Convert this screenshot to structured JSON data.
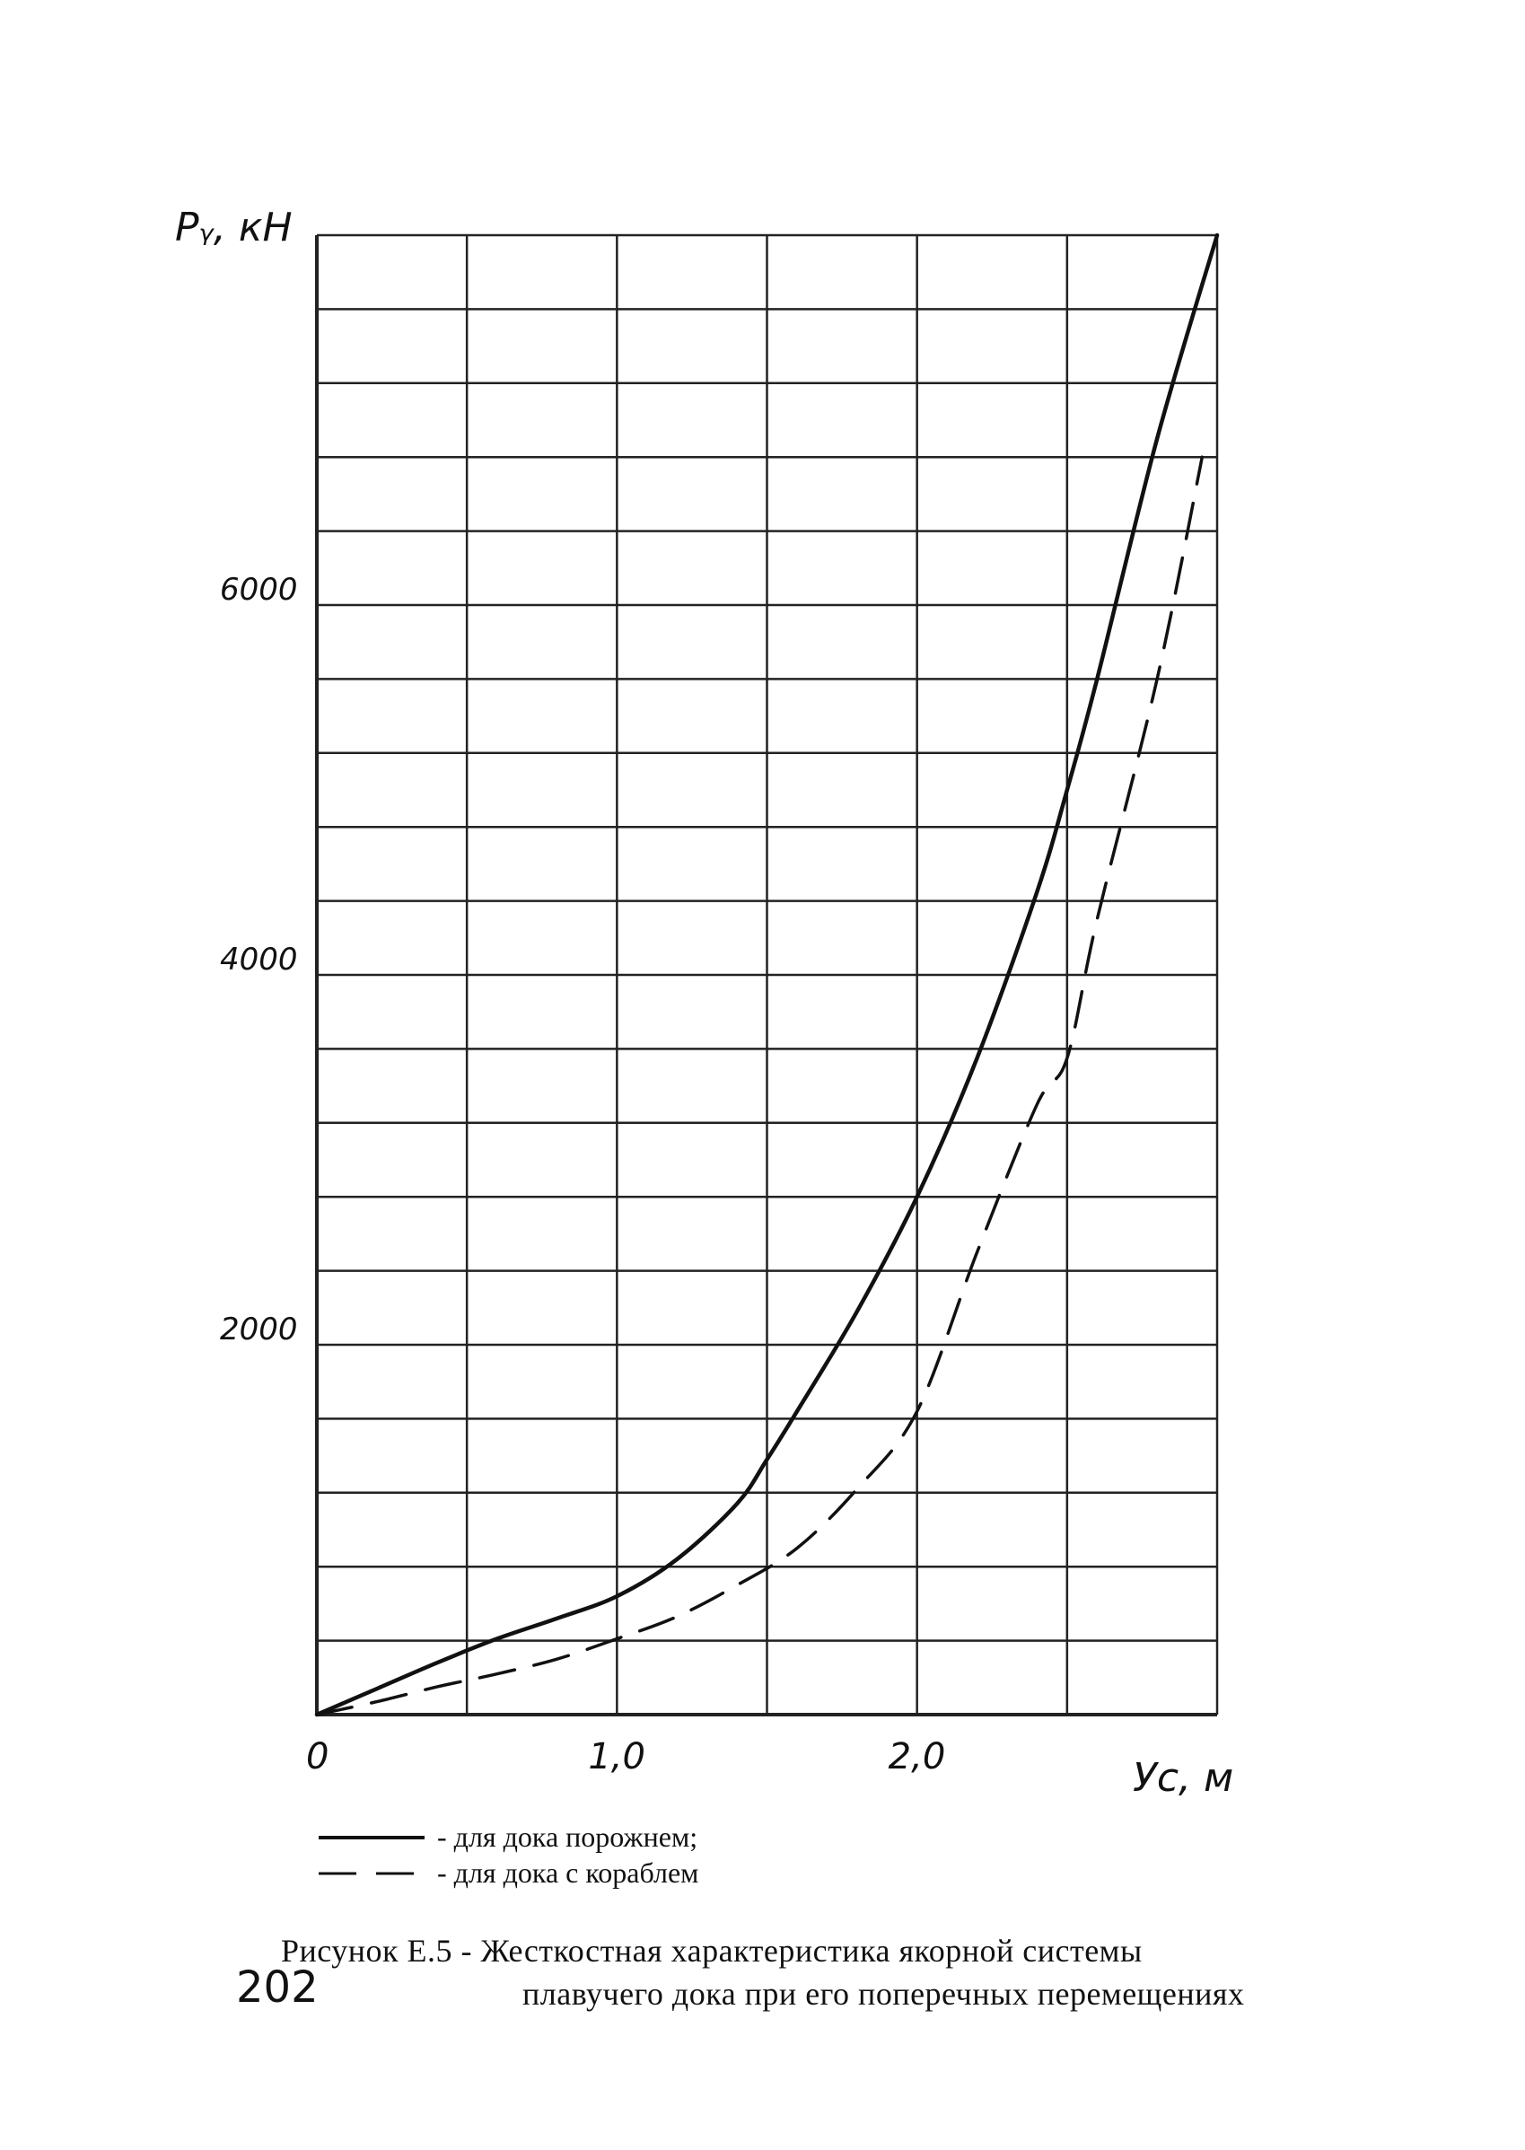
{
  "chart_data": {
    "type": "line",
    "ylabel": "Pᵧ, кН",
    "xlabel": "Уc, м",
    "x_ticks": [
      {
        "value": 0,
        "label": "0"
      },
      {
        "value": 1.0,
        "label": "1,0"
      },
      {
        "value": 2.0,
        "label": "2,0"
      }
    ],
    "y_ticks": [
      {
        "value": 2000,
        "label": "2000"
      },
      {
        "value": 4000,
        "label": "4000"
      },
      {
        "value": 6000,
        "label": "6000"
      }
    ],
    "xlim": [
      0,
      3.0
    ],
    "ylim": [
      0,
      8000
    ],
    "x_grid_step": 0.5,
    "y_grid_step": 400,
    "grid": true,
    "series": [
      {
        "name": "для дока порожнем",
        "style": "solid",
        "x": [
          0,
          0.2,
          0.4,
          0.6,
          0.8,
          1.0,
          1.2,
          1.4,
          1.5,
          1.6,
          1.8,
          2.0,
          2.2,
          2.4,
          2.5,
          2.6,
          2.8,
          3.0
        ],
        "y": [
          0,
          140,
          280,
          410,
          520,
          640,
          840,
          1140,
          1380,
          1640,
          2180,
          2800,
          3550,
          4450,
          5000,
          5600,
          6900,
          8000
        ]
      },
      {
        "name": "для дока с кораблем",
        "style": "dashed",
        "x": [
          0,
          0.2,
          0.4,
          0.6,
          0.8,
          1.0,
          1.2,
          1.4,
          1.6,
          1.8,
          2.0,
          2.2,
          2.4,
          2.5,
          2.6,
          2.8,
          2.95
        ],
        "y": [
          0,
          70,
          150,
          220,
          300,
          410,
          530,
          700,
          900,
          1220,
          1640,
          2500,
          3300,
          3550,
          4300,
          5600,
          6800
        ]
      }
    ]
  },
  "legend": {
    "item1": "- для дока порожнем;",
    "item2": "- для дока с кораблем"
  },
  "caption": {
    "line1": "Рисунок Е.5 - Жесткостная характеристика якорной системы",
    "line2": "плавучего дока при его поперечных перемещениях"
  },
  "page_number": "202"
}
